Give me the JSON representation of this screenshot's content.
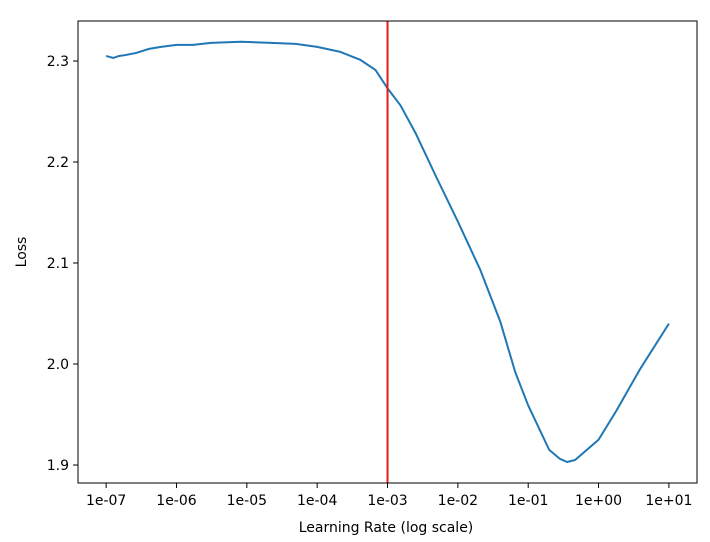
{
  "chart_data": {
    "type": "line",
    "xlabel": "Learning Rate (log scale)",
    "ylabel": "Loss",
    "xscale": "log",
    "xlim": [
      3.98e-08,
      25.1
    ],
    "ylim": [
      1.8822,
      2.3396
    ],
    "xticks": [
      {
        "value": 1e-07,
        "label": "1e-07"
      },
      {
        "value": 1e-06,
        "label": "1e-06"
      },
      {
        "value": 1e-05,
        "label": "1e-05"
      },
      {
        "value": 0.0001,
        "label": "1e-04"
      },
      {
        "value": 0.001,
        "label": "1e-03"
      },
      {
        "value": 0.01,
        "label": "1e-02"
      },
      {
        "value": 0.1,
        "label": "1e-01"
      },
      {
        "value": 1,
        "label": "1e+00"
      },
      {
        "value": 10,
        "label": "1e+01"
      }
    ],
    "yticks": [
      1.9,
      {
        "value": 2,
        "label": "2.0"
      },
      2.1,
      2.2,
      2.3
    ],
    "series": [
      {
        "color": "#1f77b4",
        "x": [
          1e-07,
          1.26e-07,
          1.53e-07,
          1.92e-07,
          2.67e-07,
          4.07e-07,
          6.03e-07,
          1e-06,
          1.71e-06,
          3.09e-06,
          8.22e-06,
          2.19e-05,
          4.95e-05,
          0.0001,
          0.000214,
          0.000414,
          0.000676,
          0.001,
          0.00153,
          0.00249,
          0.00479,
          0.01,
          0.0209,
          0.0401,
          0.0654,
          0.1,
          0.199,
          0.284,
          0.357,
          0.464,
          1,
          1.8,
          3.82,
          10
        ],
        "values": [
          2.305,
          2.303,
          2.305,
          2.306,
          2.308,
          2.312,
          2.314,
          2.316,
          2.316,
          2.318,
          2.319,
          2.318,
          2.317,
          2.314,
          2.309,
          2.301,
          2.291,
          2.273,
          2.256,
          2.229,
          2.187,
          2.141,
          2.093,
          2.042,
          1.992,
          1.959,
          1.915,
          1.906,
          1.903,
          1.905,
          1.925,
          1.954,
          1.994,
          2.04
        ]
      }
    ],
    "vline": {
      "x": 0.001,
      "color": "#e41a1c"
    }
  }
}
